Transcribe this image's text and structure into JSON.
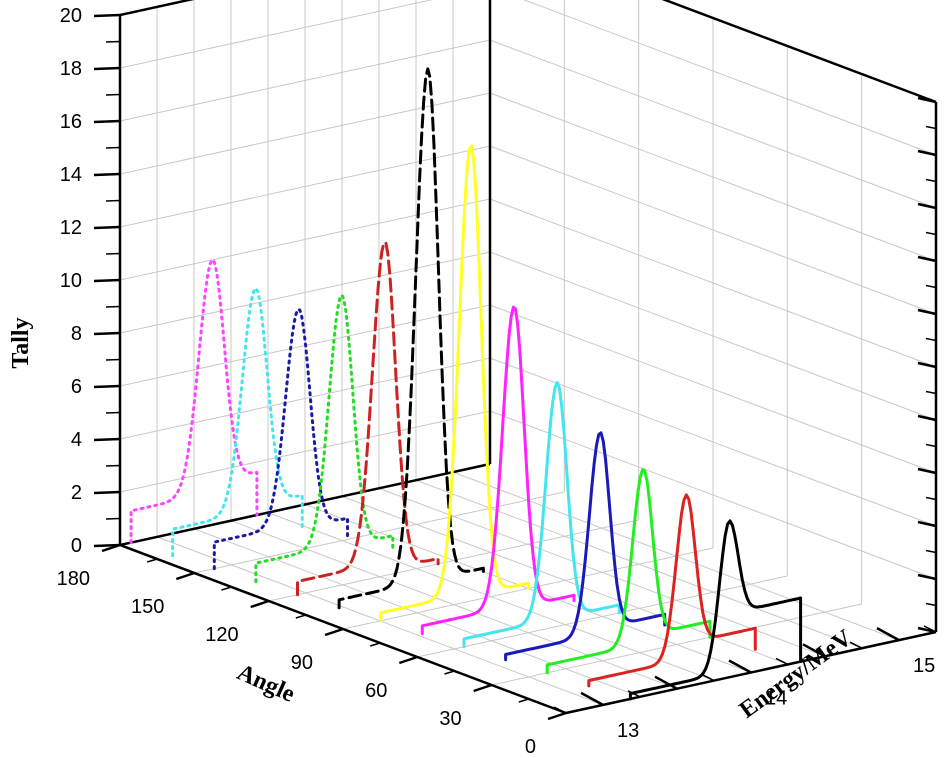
{
  "chart_data": {
    "type": "line",
    "subtype": "3d-waterfall",
    "title": "",
    "zlabel": "Tally",
    "xlabel": "Angle",
    "ylabel": "Energy/MeV",
    "zlim": [
      0,
      20
    ],
    "z_ticks": [
      "0",
      "2",
      "4",
      "6",
      "8",
      "10",
      "12",
      "14",
      "16",
      "18",
      "20"
    ],
    "angle_ticks": [
      "180",
      "150",
      "120",
      "90",
      "60",
      "30",
      "0"
    ],
    "energy_ticks": [
      "13",
      "14",
      "15"
    ],
    "grid": true,
    "series": [
      {
        "name": "Angle 180",
        "color": "#ff44ff",
        "line_style": "dotted",
        "start_value": 1.2,
        "peak_value": 10.0,
        "tail_value": 1.6
      },
      {
        "name": "Angle 165",
        "color": "#44e6ee",
        "line_style": "dotted",
        "start_value": 1.0,
        "peak_value": 9.4,
        "tail_value": 1.2
      },
      {
        "name": "Angle 150",
        "color": "#1a1aa8",
        "line_style": "dotted",
        "start_value": 1.0,
        "peak_value": 9.1,
        "tail_value": 0.8
      },
      {
        "name": "Angle 135",
        "color": "#22dd22",
        "line_style": "dotted",
        "start_value": 0.7,
        "peak_value": 10.1,
        "tail_value": 0.6
      },
      {
        "name": "Angle 120",
        "color": "#cc2222",
        "line_style": "dashed",
        "start_value": 0.5,
        "peak_value": 12.6,
        "tail_value": 0.2
      },
      {
        "name": "Angle 105",
        "color": "#000000",
        "line_style": "dashed",
        "start_value": 0.3,
        "peak_value": 19.6,
        "tail_value": 0.3
      },
      {
        "name": "Angle 90",
        "color": "#ffff22",
        "line_style": "solid",
        "start_value": 0.3,
        "peak_value": 17.2,
        "tail_value": 0.2
      },
      {
        "name": "Angle 75",
        "color": "#ff22ff",
        "line_style": "solid",
        "start_value": 0.3,
        "peak_value": 11.6,
        "tail_value": 0.2
      },
      {
        "name": "Angle 60",
        "color": "#44e6ee",
        "line_style": "solid",
        "start_value": 0.3,
        "peak_value": 9.2,
        "tail_value": 0.3
      },
      {
        "name": "Angle 45",
        "color": "#1a1ab8",
        "line_style": "solid",
        "start_value": 0.2,
        "peak_value": 7.8,
        "tail_value": 0.4
      },
      {
        "name": "Angle 30",
        "color": "#22ee22",
        "line_style": "solid",
        "start_value": 0.3,
        "peak_value": 6.9,
        "tail_value": 0.6
      },
      {
        "name": "Angle 15",
        "color": "#dd2222",
        "line_style": "solid",
        "start_value": 0.2,
        "peak_value": 6.4,
        "tail_value": 0.8
      },
      {
        "name": "Angle 0",
        "color": "#000000",
        "line_style": "solid",
        "start_value": 0.2,
        "peak_value": 5.9,
        "tail_value": 2.4
      }
    ]
  }
}
